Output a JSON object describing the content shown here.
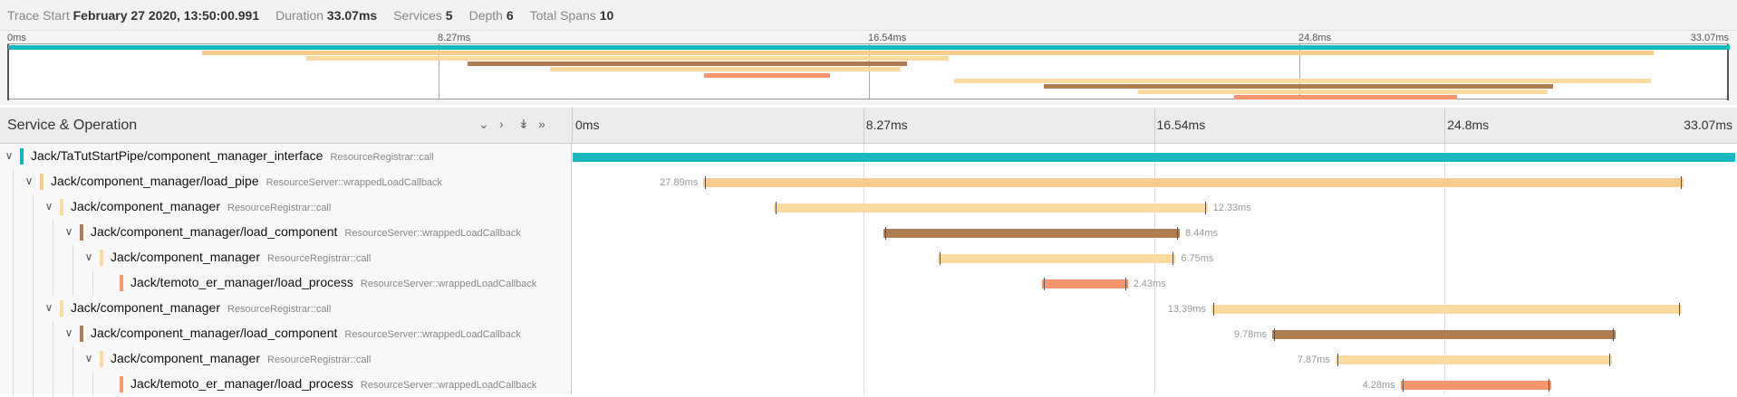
{
  "summary": {
    "trace_start_label": "Trace Start",
    "trace_start_value": "February 27 2020, 13:50:00.991",
    "duration_label": "Duration",
    "duration_value": "33.07ms",
    "services_label": "Services",
    "services_value": "5",
    "depth_label": "Depth",
    "depth_value": "6",
    "total_spans_label": "Total Spans",
    "total_spans_value": "10"
  },
  "minimap": {
    "ticks": [
      "0ms",
      "8.27ms",
      "16.54ms",
      "24.8ms",
      "33.07ms"
    ]
  },
  "header": {
    "title": "Service & Operation",
    "controls": [
      "collapse-one",
      "expand-one",
      "collapse-all",
      "expand-all"
    ],
    "ticks": [
      "0ms",
      "8.27ms",
      "16.54ms",
      "24.8ms",
      "33.07ms"
    ]
  },
  "trace": {
    "duration_ms": 33.07,
    "spans": [
      {
        "service": "Jack/TaTutStartPipe/component_manager_interface",
        "operation": "ResourceRegistrar::call",
        "depth": 0,
        "color": "#17b8be",
        "start_ms": 0.0,
        "duration_ms": 33.07,
        "label": ""
      },
      {
        "service": "Jack/component_manager/load_pipe",
        "operation": "ResourceServer::wrappedLoadCallback",
        "depth": 1,
        "color": "#f8cc8c",
        "start_ms": 3.72,
        "duration_ms": 27.89,
        "label": "27.89ms",
        "label_side": "left"
      },
      {
        "service": "Jack/component_manager",
        "operation": "ResourceRegistrar::call",
        "depth": 2,
        "color": "#fbdba0",
        "start_ms": 5.73,
        "duration_ms": 12.33,
        "label": "12.33ms",
        "label_side": "right"
      },
      {
        "service": "Jack/component_manager/load_component",
        "operation": "ResourceServer::wrappedLoadCallback",
        "depth": 3,
        "color": "#b07d52",
        "start_ms": 8.83,
        "duration_ms": 8.44,
        "label": "8.44ms",
        "label_side": "right"
      },
      {
        "service": "Jack/component_manager",
        "operation": "ResourceRegistrar::call",
        "depth": 4,
        "color": "#fbdba0",
        "start_ms": 10.4,
        "duration_ms": 6.75,
        "label": "6.75ms",
        "label_side": "right"
      },
      {
        "service": "Jack/temoto_er_manager/load_process",
        "operation": "ResourceServer::wrappedLoadCallback",
        "depth": 5,
        "color": "#f7956d",
        "start_ms": 13.36,
        "duration_ms": 2.43,
        "label": "2.43ms",
        "label_side": "right"
      },
      {
        "service": "Jack/component_manager",
        "operation": "ResourceRegistrar::call",
        "depth": 2,
        "color": "#fbdba0",
        "start_ms": 18.17,
        "duration_ms": 13.39,
        "label": "13.39ms",
        "label_side": "left"
      },
      {
        "service": "Jack/component_manager/load_component",
        "operation": "ResourceServer::wrappedLoadCallback",
        "depth": 3,
        "color": "#b07d52",
        "start_ms": 19.9,
        "duration_ms": 9.78,
        "label": "9.78ms",
        "label_side": "left"
      },
      {
        "service": "Jack/component_manager",
        "operation": "ResourceRegistrar::call",
        "depth": 4,
        "color": "#fbdba0",
        "start_ms": 21.7,
        "duration_ms": 7.87,
        "label": "7.87ms",
        "label_side": "left"
      },
      {
        "service": "Jack/temoto_er_manager/load_process",
        "operation": "ResourceServer::wrappedLoadCallback",
        "depth": 5,
        "color": "#f7956d",
        "start_ms": 23.55,
        "duration_ms": 4.28,
        "label": "4.28ms",
        "label_side": "left"
      }
    ]
  }
}
